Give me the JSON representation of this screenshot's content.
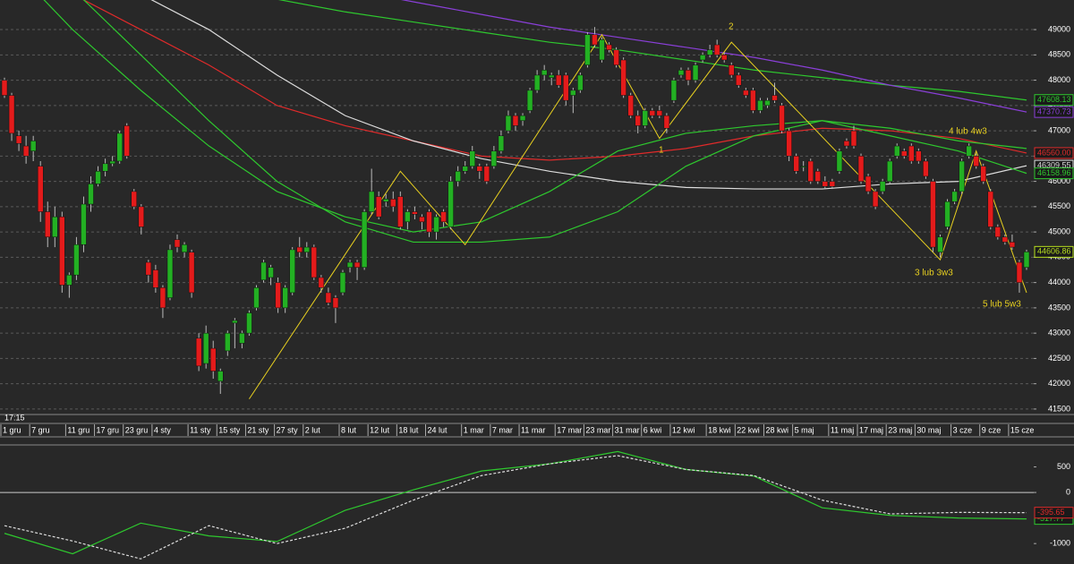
{
  "chart_data": [
    {
      "type": "candlestick",
      "time": "17:15",
      "ylim": [
        41410,
        49585
      ],
      "yticks": [
        41500,
        42000,
        42500,
        43000,
        43500,
        44000,
        44500,
        45000,
        45500,
        46000,
        46500,
        47000,
        47500,
        48000,
        48500,
        49000
      ],
      "grid": true,
      "up_color": "#23b023",
      "down_color": "#e41b1b",
      "categories": [
        "1 gru",
        null,
        null,
        null,
        "7 gru",
        null,
        null,
        null,
        null,
        "11 gru",
        null,
        null,
        null,
        "17 gru",
        null,
        null,
        null,
        "23 gru",
        null,
        null,
        null,
        "4 sty",
        null,
        null,
        null,
        null,
        "11 sty",
        null,
        null,
        null,
        "15 sty",
        null,
        null,
        null,
        "21 sty",
        null,
        null,
        null,
        "27 sty",
        null,
        null,
        null,
        "2 lut",
        null,
        null,
        null,
        null,
        "8 lut",
        null,
        null,
        null,
        "12 lut",
        null,
        null,
        null,
        "18 lut",
        null,
        null,
        null,
        "24 lut",
        null,
        null,
        null,
        null,
        "1 mar",
        null,
        null,
        null,
        "7 mar",
        null,
        null,
        null,
        "11 mar",
        null,
        null,
        null,
        null,
        "17 mar",
        null,
        null,
        null,
        "23 mar",
        null,
        null,
        null,
        "31 mar",
        null,
        null,
        null,
        "6 kwi",
        null,
        null,
        null,
        "12 kwi",
        null,
        null,
        null,
        null,
        "18 kwi",
        null,
        null,
        null,
        "22 kwi",
        null,
        null,
        null,
        "28 kwi",
        null,
        null,
        null,
        "5 maj",
        null,
        null,
        null,
        null,
        "11 maj",
        null,
        null,
        null,
        "17 maj",
        null,
        null,
        null,
        "23 maj",
        null,
        null,
        null,
        "30 maj",
        null,
        null,
        null,
        null,
        "3 cze",
        null,
        null,
        null,
        "9 cze",
        null,
        null,
        null,
        "15 cze",
        null,
        null
      ],
      "ohlc": [
        [
          48000,
          48050,
          47650,
          47700
        ],
        [
          47700,
          47750,
          46800,
          46950
        ],
        [
          46900,
          47000,
          46600,
          46750
        ],
        [
          46700,
          46900,
          46350,
          46500
        ],
        [
          46600,
          46900,
          46400,
          46800
        ],
        [
          46300,
          46400,
          45200,
          45400
        ],
        [
          45400,
          45600,
          44700,
          44900
        ],
        [
          44900,
          45500,
          44700,
          45300
        ],
        [
          45300,
          45400,
          43800,
          43950
        ],
        [
          43950,
          44200,
          43700,
          44150
        ],
        [
          44150,
          44900,
          44050,
          44750
        ],
        [
          44750,
          45700,
          44600,
          45550
        ],
        [
          45550,
          46100,
          45400,
          45950
        ],
        [
          45950,
          46300,
          45900,
          46200
        ],
        [
          46200,
          46450,
          46100,
          46350
        ],
        [
          46350,
          46500,
          46300,
          46400
        ],
        [
          46400,
          47000,
          46350,
          46950
        ],
        [
          47100,
          47150,
          46450,
          46500
        ],
        [
          45800,
          45850,
          45450,
          45500
        ],
        [
          45500,
          45550,
          44950,
          45100
        ],
        [
          44400,
          44450,
          44000,
          44150
        ],
        [
          44250,
          44350,
          43800,
          43900
        ],
        [
          43900,
          43950,
          43300,
          43500
        ],
        [
          43700,
          44750,
          43650,
          44650
        ],
        [
          44850,
          44950,
          44600,
          44700
        ],
        [
          44600,
          44800,
          44500,
          44750
        ],
        [
          44600,
          44650,
          43700,
          43800
        ],
        [
          42900,
          43000,
          42250,
          42350
        ],
        [
          42400,
          43150,
          42300,
          43000
        ],
        [
          42700,
          42850,
          42100,
          42250
        ],
        [
          42050,
          42300,
          41800,
          42250
        ],
        [
          42650,
          43050,
          42550,
          43000
        ],
        [
          43200,
          43300,
          42700,
          43250
        ],
        [
          42800,
          43050,
          42700,
          43000
        ],
        [
          43000,
          43450,
          42950,
          43400
        ],
        [
          43500,
          43950,
          43450,
          43900
        ],
        [
          44050,
          44450,
          44000,
          44400
        ],
        [
          44100,
          44350,
          43950,
          44300
        ],
        [
          44000,
          44100,
          43400,
          43500
        ],
        [
          43500,
          43950,
          43400,
          43900
        ],
        [
          43800,
          44700,
          43750,
          44650
        ],
        [
          44700,
          44900,
          44500,
          44600
        ],
        [
          44600,
          44800,
          44500,
          44700
        ],
        [
          44700,
          44750,
          44050,
          44100
        ],
        [
          44100,
          44150,
          43800,
          43900
        ],
        [
          43800,
          43900,
          43550,
          43600
        ],
        [
          43700,
          43750,
          43200,
          43500
        ],
        [
          43800,
          44250,
          43750,
          44200
        ],
        [
          44300,
          44450,
          44200,
          44400
        ],
        [
          44400,
          44450,
          44050,
          44300
        ],
        [
          44300,
          45450,
          44250,
          45400
        ],
        [
          45400,
          46250,
          45350,
          45800
        ],
        [
          45700,
          45800,
          45250,
          45300
        ],
        [
          45600,
          45750,
          45500,
          45650
        ],
        [
          45650,
          45800,
          45400,
          45500
        ],
        [
          45700,
          45800,
          45050,
          45100
        ],
        [
          45200,
          45450,
          45050,
          45400
        ],
        [
          45400,
          45500,
          45250,
          45350
        ],
        [
          45300,
          45350,
          45050,
          45200
        ],
        [
          45400,
          45450,
          44900,
          45000
        ],
        [
          45000,
          45350,
          44850,
          45300
        ],
        [
          45400,
          45450,
          45100,
          45200
        ],
        [
          45100,
          46100,
          45050,
          46000
        ],
        [
          46000,
          46300,
          45900,
          46200
        ],
        [
          46200,
          46400,
          46150,
          46300
        ],
        [
          46300,
          46700,
          46250,
          46600
        ],
        [
          46300,
          46350,
          46050,
          46200
        ],
        [
          46300,
          46350,
          45950,
          46000
        ],
        [
          46300,
          46700,
          46250,
          46600
        ],
        [
          46600,
          47000,
          46550,
          46900
        ],
        [
          47000,
          47400,
          46950,
          47300
        ],
        [
          47300,
          47350,
          47000,
          47100
        ],
        [
          47200,
          47350,
          47100,
          47300
        ],
        [
          47400,
          47850,
          47350,
          47800
        ],
        [
          47800,
          48200,
          47750,
          48100
        ],
        [
          48100,
          48300,
          48000,
          48200
        ],
        [
          48050,
          48150,
          47900,
          48100
        ],
        [
          48100,
          48200,
          47850,
          47900
        ],
        [
          48100,
          48150,
          47500,
          47600
        ],
        [
          47700,
          47850,
          47350,
          47800
        ],
        [
          47800,
          48150,
          47750,
          48100
        ],
        [
          48300,
          48950,
          48250,
          48900
        ],
        [
          48900,
          49050,
          48650,
          48700
        ],
        [
          48400,
          48850,
          48350,
          48800
        ],
        [
          48700,
          48750,
          48550,
          48600
        ],
        [
          48600,
          48650,
          48250,
          48300
        ],
        [
          48400,
          48450,
          47650,
          47700
        ],
        [
          47700,
          47750,
          47250,
          47300
        ],
        [
          47300,
          47400,
          46950,
          47100
        ],
        [
          47100,
          47450,
          47050,
          47400
        ],
        [
          47400,
          47450,
          47250,
          47300
        ],
        [
          47400,
          47500,
          47250,
          47300
        ],
        [
          47300,
          47350,
          46950,
          47050
        ],
        [
          47600,
          48050,
          47550,
          48000
        ],
        [
          48100,
          48250,
          48050,
          48200
        ],
        [
          48200,
          48250,
          47900,
          48000
        ],
        [
          48000,
          48350,
          47950,
          48300
        ],
        [
          48400,
          48550,
          48350,
          48500
        ],
        [
          48500,
          48700,
          48450,
          48600
        ],
        [
          48700,
          48800,
          48450,
          48500
        ],
        [
          48500,
          48550,
          48350,
          48400
        ],
        [
          48300,
          48350,
          48050,
          48100
        ],
        [
          48100,
          48150,
          47850,
          47900
        ],
        [
          47800,
          47850,
          47650,
          47700
        ],
        [
          47800,
          47850,
          47350,
          47400
        ],
        [
          47400,
          47650,
          47350,
          47600
        ],
        [
          47500,
          47650,
          47450,
          47600
        ],
        [
          47700,
          47950,
          47550,
          47600
        ],
        [
          47500,
          47550,
          46950,
          47000
        ],
        [
          47000,
          47050,
          46400,
          46500
        ],
        [
          46500,
          46550,
          46150,
          46200
        ],
        [
          46300,
          46400,
          46200,
          46300
        ],
        [
          46400,
          46450,
          45950,
          46000
        ],
        [
          46200,
          46250,
          45950,
          46000
        ],
        [
          46000,
          46100,
          45850,
          45900
        ],
        [
          46000,
          46050,
          45850,
          45900
        ],
        [
          46200,
          46650,
          46150,
          46600
        ],
        [
          46800,
          46850,
          46650,
          46700
        ],
        [
          47000,
          47100,
          46650,
          46700
        ],
        [
          46500,
          46550,
          45950,
          46000
        ],
        [
          46100,
          46150,
          45750,
          45800
        ],
        [
          45800,
          45850,
          45450,
          45500
        ],
        [
          45800,
          46050,
          45750,
          46000
        ],
        [
          46000,
          46450,
          45950,
          46400
        ],
        [
          46500,
          46750,
          46450,
          46700
        ],
        [
          46600,
          46650,
          46450,
          46500
        ],
        [
          46700,
          46750,
          46350,
          46400
        ],
        [
          46600,
          46650,
          46350,
          46400
        ],
        [
          46400,
          46450,
          46050,
          46100
        ],
        [
          46000,
          46050,
          44600,
          44700
        ],
        [
          44600,
          44950,
          44500,
          44900
        ],
        [
          45100,
          45650,
          45050,
          45600
        ],
        [
          45600,
          45850,
          45550,
          45800
        ],
        [
          45800,
          46450,
          45750,
          46400
        ],
        [
          46500,
          46750,
          46450,
          46700
        ],
        [
          46500,
          46550,
          46250,
          46300
        ],
        [
          46300,
          46350,
          45950,
          46000
        ],
        [
          45800,
          45850,
          45050,
          45100
        ],
        [
          45100,
          45150,
          44850,
          44900
        ],
        [
          44900,
          44950,
          44750,
          44800
        ],
        [
          44800,
          44950,
          44650,
          44700
        ],
        [
          44400,
          44450,
          43800,
          44000
        ],
        [
          44300,
          44650,
          44250,
          44606.86
        ]
      ],
      "last_color": "#b8e020",
      "ma_series": [
        {
          "color": "#2ec82e",
          "values": [
            50500,
            50300,
            50100,
            49900,
            49600,
            49350,
            49150,
            48950,
            48750,
            48600,
            48400,
            48200,
            48050,
            47900,
            47780,
            47608.13
          ]
        },
        {
          "color": "#8a3fd8",
          "values": [
            52000,
            51500,
            51000,
            50500,
            50100,
            49800,
            49550,
            49300,
            49050,
            48850,
            48650,
            48450,
            48200,
            47900,
            47650,
            47370.73
          ]
        },
        {
          "color": "#e02a2a",
          "values": [
            50200,
            49700,
            49000,
            48300,
            47500,
            47100,
            46800,
            46500,
            46420,
            46500,
            46650,
            46900,
            47050,
            47000,
            46850,
            46560
          ],
          "value_labels": [
            null,
            null,
            null,
            null,
            null,
            null,
            null,
            null,
            null,
            null,
            null,
            null,
            null,
            null,
            null,
            "46560.00"
          ]
        },
        {
          "color": "#dddddd",
          "values": [
            51000,
            50300,
            49700,
            49000,
            48100,
            47300,
            46800,
            46450,
            46200,
            46000,
            45880,
            45850,
            45850,
            45950,
            46000,
            46309.55
          ]
        },
        {
          "color": "#2ec82e",
          "values": [
            51000,
            49800,
            48500,
            47200,
            46000,
            45200,
            44800,
            44800,
            44900,
            45400,
            46300,
            46900,
            47200,
            46900,
            46600,
            46158.96
          ]
        },
        {
          "color": "#2ec82e",
          "values": [
            50400,
            49000,
            47800,
            46700,
            45800,
            45300,
            45000,
            45200,
            45800,
            46600,
            46950,
            47100,
            47200,
            47050,
            46800,
            46650
          ]
        }
      ],
      "wave": {
        "color": "#e8d020",
        "x": [
          34,
          55,
          64,
          83,
          91,
          101,
          130,
          135,
          142
        ],
        "values": [
          41700,
          46200,
          44750,
          48900,
          46850,
          48750,
          44450,
          46600,
          43800
        ]
      },
      "annotations": [
        "2",
        "1",
        "4 lub 4w3",
        "3 lub 3w3",
        "5 lub 5w3"
      ]
    },
    {
      "type": "line",
      "ylim": [
        -1400,
        930
      ],
      "yticks": [
        500,
        0,
        -1000
      ],
      "hline": 0,
      "series": [
        {
          "color": "#2ec82e",
          "dash": false,
          "values": [
            -800,
            -1200,
            -600,
            -850,
            -960,
            -350,
            50,
            420,
            560,
            800,
            450,
            320,
            -300,
            -450,
            -500,
            -517.77
          ]
        },
        {
          "color": "#dddddd",
          "dash": true,
          "label_color": "#e02a2a",
          "values": [
            -650,
            -950,
            -1300,
            -650,
            -1000,
            -700,
            -150,
            330,
            560,
            720,
            450,
            330,
            -150,
            -420,
            -390,
            -395.65
          ]
        }
      ]
    }
  ]
}
